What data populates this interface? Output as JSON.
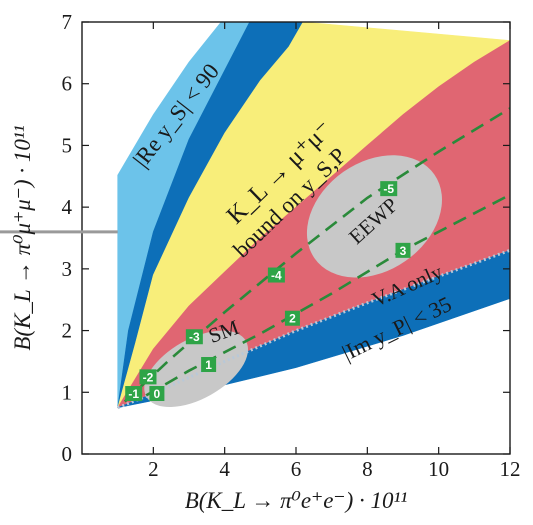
{
  "chart_data": {
    "type": "area",
    "title": "",
    "xlabel": "B(K_L → π⁰e⁺e⁻) · 10¹¹",
    "ylabel": "B(K_L → π⁰μ⁺μ⁻) · 10¹¹",
    "xlim": [
      0,
      12
    ],
    "ylim": [
      0,
      7
    ],
    "xticks": [
      "2",
      "4",
      "6",
      "8",
      "10",
      "12"
    ],
    "yticks": [
      "0",
      "1",
      "2",
      "3",
      "4",
      "5",
      "6",
      "7"
    ],
    "grid": false,
    "colors": {
      "light_blue": "#6cc3ea",
      "dark_blue": "#0d6fb8",
      "yellow": "#f8ee7a",
      "red": "#e06672",
      "gray": "#c8c8c8",
      "marker": "#2ea447",
      "dashed": "#2a8a3a"
    },
    "regions": [
      {
        "name": "light-blue",
        "upper": [
          [
            1.0,
            4.52
          ],
          [
            2.0,
            5.5
          ],
          [
            3.0,
            6.35
          ],
          [
            3.9,
            7.0
          ]
        ],
        "lower": [
          [
            1.0,
            0.75
          ],
          [
            1.3,
            2.0
          ],
          [
            2.0,
            3.6
          ],
          [
            3.0,
            5.1
          ],
          [
            4.7,
            7.0
          ]
        ]
      },
      {
        "name": "dark-blue-top",
        "upper": [
          [
            1.0,
            0.75
          ],
          [
            1.3,
            2.0
          ],
          [
            2.0,
            3.6
          ],
          [
            3.0,
            5.1
          ],
          [
            4.7,
            7.0
          ]
        ],
        "lower": [
          [
            1.0,
            0.75
          ],
          [
            1.5,
            1.8
          ],
          [
            2.0,
            2.9
          ],
          [
            3.0,
            4.15
          ],
          [
            4.0,
            5.2
          ],
          [
            5.0,
            6.05
          ],
          [
            5.8,
            6.6
          ],
          [
            6.2,
            7.0
          ]
        ]
      },
      {
        "name": "yellow",
        "upper": [
          [
            1.0,
            0.75
          ],
          [
            1.5,
            1.8
          ],
          [
            2.0,
            2.9
          ],
          [
            3.0,
            4.15
          ],
          [
            4.0,
            5.2
          ],
          [
            5.0,
            6.05
          ],
          [
            5.8,
            6.6
          ],
          [
            6.2,
            7.0
          ]
        ],
        "lower": [
          [
            1.0,
            0.75
          ],
          [
            2.0,
            1.7
          ],
          [
            3.0,
            2.4
          ],
          [
            4.0,
            2.95
          ],
          [
            5.0,
            3.5
          ],
          [
            6.0,
            4.0
          ],
          [
            7.0,
            4.5
          ],
          [
            8.0,
            5.0
          ],
          [
            9.0,
            5.5
          ],
          [
            10.0,
            5.95
          ],
          [
            11.0,
            6.35
          ],
          [
            12.0,
            6.7
          ]
        ]
      },
      {
        "name": "red",
        "upper": [
          [
            1.0,
            0.75
          ],
          [
            2.0,
            1.7
          ],
          [
            3.0,
            2.4
          ],
          [
            4.0,
            2.95
          ],
          [
            5.0,
            3.5
          ],
          [
            6.0,
            4.0
          ],
          [
            7.0,
            4.5
          ],
          [
            8.0,
            5.0
          ],
          [
            9.0,
            5.5
          ],
          [
            10.0,
            5.95
          ],
          [
            11.0,
            6.35
          ],
          [
            12.0,
            6.7
          ]
        ],
        "lower": [
          [
            1.0,
            0.75
          ],
          [
            2.0,
            0.98
          ],
          [
            4.0,
            1.5
          ],
          [
            6.0,
            2.0
          ],
          [
            8.0,
            2.45
          ],
          [
            10.0,
            2.88
          ],
          [
            12.0,
            3.3
          ]
        ]
      },
      {
        "name": "dark-blue-bottom",
        "upper": [
          [
            1.0,
            0.75
          ],
          [
            2.0,
            0.98
          ],
          [
            4.0,
            1.5
          ],
          [
            6.0,
            2.0
          ],
          [
            8.0,
            2.45
          ],
          [
            10.0,
            2.88
          ],
          [
            12.0,
            3.3
          ]
        ],
        "lower": [
          [
            1.0,
            0.75
          ],
          [
            3.0,
            0.98
          ],
          [
            6.0,
            1.4
          ],
          [
            9.0,
            1.92
          ],
          [
            12.0,
            2.52
          ]
        ]
      }
    ],
    "gray_regions": [
      {
        "name": "sm-ellipse",
        "cx": 3.2,
        "cy": 1.38,
        "rx": 1.6,
        "ry": 0.22,
        "angle_data_deg": 18
      },
      {
        "name": "eewp-ellipse",
        "cx": 8.2,
        "cy": 3.85,
        "rx": 2.05,
        "ry": 0.4,
        "angle_data_deg": 22
      }
    ],
    "dashed_lines": [
      {
        "name": "upper-branch",
        "points": [
          [
            1.2,
            0.85
          ],
          [
            2.5,
            1.55
          ],
          [
            4.0,
            2.3
          ],
          [
            6.0,
            3.25
          ],
          [
            8.0,
            4.15
          ],
          [
            10.0,
            4.9
          ],
          [
            12.0,
            5.6
          ]
        ]
      },
      {
        "name": "lower-branch",
        "points": [
          [
            1.8,
            0.95
          ],
          [
            3.0,
            1.35
          ],
          [
            5.0,
            1.95
          ],
          [
            7.0,
            2.6
          ],
          [
            9.0,
            3.3
          ],
          [
            12.0,
            4.2
          ]
        ]
      }
    ],
    "markers": [
      {
        "label": "-5",
        "x": 8.6,
        "y": 4.3
      },
      {
        "label": "-4",
        "x": 5.45,
        "y": 2.9
      },
      {
        "label": "-3",
        "x": 3.15,
        "y": 1.9
      },
      {
        "label": "-2",
        "x": 1.85,
        "y": 1.25
      },
      {
        "label": "-1",
        "x": 1.45,
        "y": 0.98
      },
      {
        "label": "0",
        "x": 2.1,
        "y": 0.98
      },
      {
        "label": "1",
        "x": 3.55,
        "y": 1.45
      },
      {
        "label": "2",
        "x": 5.9,
        "y": 2.2
      },
      {
        "label": "3",
        "x": 9.0,
        "y": 3.3
      }
    ],
    "annotations": {
      "re_ys": "|Re y_S| < 90",
      "kl_mumu_line1": "K_L → μ⁺μ⁻",
      "kl_mumu_line2": "bound on y_S,P",
      "eewp": "EEWP",
      "va_only": "V.A only",
      "sm": "SM",
      "im_yp": "|Im y_P| < 35"
    },
    "reference_line_y": 3.6
  }
}
